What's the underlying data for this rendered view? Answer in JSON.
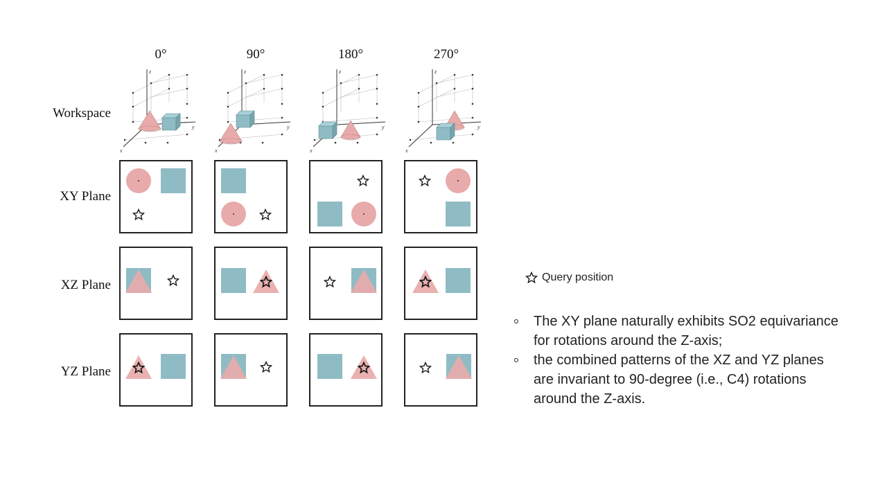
{
  "angles": [
    "0°",
    "90°",
    "180°",
    "270°"
  ],
  "rows": [
    "Workspace",
    "XY Plane",
    "XZ Plane",
    "YZ Plane"
  ],
  "axes": {
    "x": "x",
    "y": "y",
    "z": "z"
  },
  "colors": {
    "cube": "#8fbcc4",
    "cone": "#e8aaaa",
    "border": "#222222"
  },
  "legend": {
    "icon": "star-icon",
    "label": "Query position"
  },
  "bullets": [
    "The XY plane naturally exhibits SO2 equivariance for rotations around the Z-axis;",
    "the combined patterns of the XZ and YZ planes are invariant to 90-degree (i.e., C4) rotations around the Z-axis."
  ]
}
